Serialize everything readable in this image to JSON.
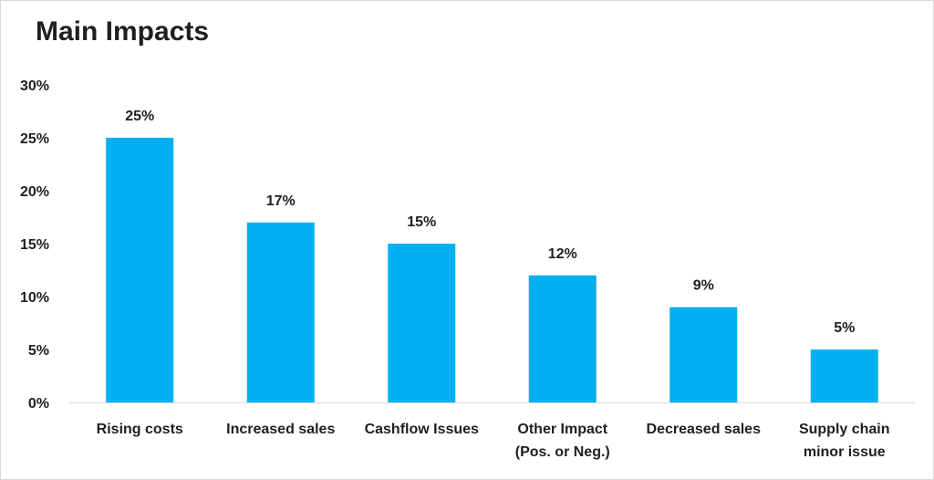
{
  "chart_data": {
    "type": "bar",
    "title": "Main Impacts",
    "xlabel": "",
    "ylabel": "",
    "categories": [
      [
        "Rising costs"
      ],
      [
        "Increased sales"
      ],
      [
        "Cashflow Issues"
      ],
      [
        "Other Impact",
        "(Pos. or Neg.)"
      ],
      [
        "Decreased sales"
      ],
      [
        "Supply chain",
        "minor issue"
      ]
    ],
    "values": [
      25,
      17,
      15,
      12,
      9,
      5
    ],
    "data_labels": [
      "25%",
      "17%",
      "15%",
      "12%",
      "9%",
      "5%"
    ],
    "ylim": [
      0,
      30
    ],
    "yticks": [
      0,
      5,
      10,
      15,
      20,
      25,
      30
    ],
    "ytick_labels": [
      "0%",
      "5%",
      "10%",
      "15%",
      "20%",
      "25%",
      "30%"
    ],
    "grid": false,
    "legend": "none",
    "bar_color": "#00b0f0",
    "axis_color": "#d9d9d9"
  }
}
